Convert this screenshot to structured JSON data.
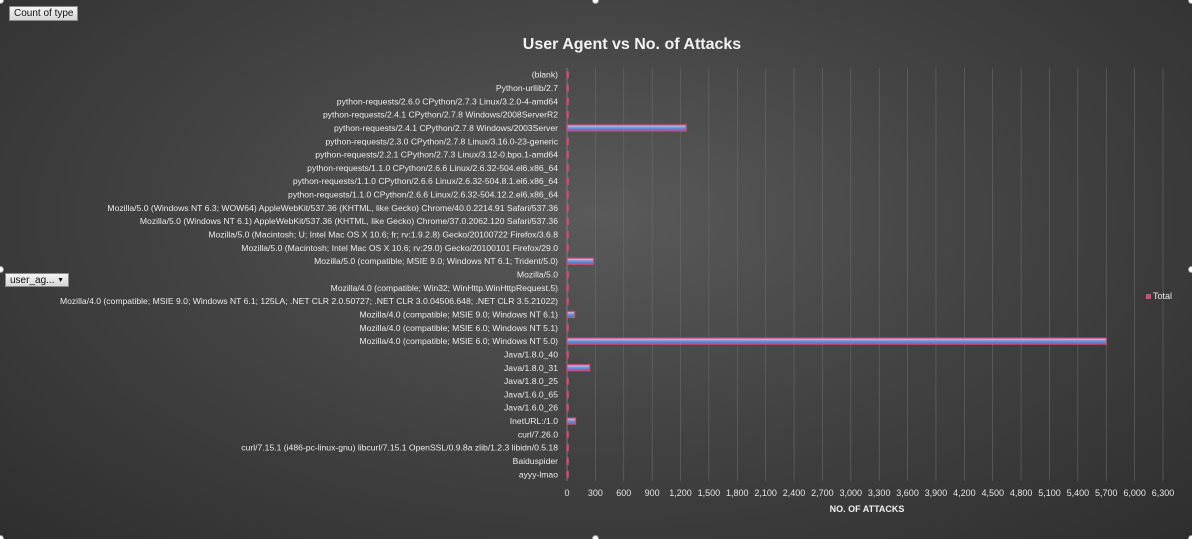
{
  "pivot": {
    "value_field": "Count of type",
    "row_field": "user_ag..."
  },
  "chart_data": {
    "type": "bar",
    "orientation": "horizontal",
    "title": "User Agent vs No. of Attacks",
    "xlabel": "NO. OF ATTACKS",
    "ylabel": "",
    "xlim": [
      0,
      6300
    ],
    "xticks": [
      0,
      300,
      600,
      900,
      1200,
      1500,
      1800,
      2100,
      2400,
      2700,
      3000,
      3300,
      3600,
      3900,
      4200,
      4500,
      4800,
      5100,
      5400,
      5700,
      6000,
      6300
    ],
    "xtick_labels": [
      "0",
      "300",
      "600",
      "900",
      "1,200",
      "1,500",
      "1,800",
      "2,100",
      "2,400",
      "2,700",
      "3,000",
      "3,300",
      "3,600",
      "3,900",
      "4,200",
      "4,500",
      "4,800",
      "5,100",
      "5,400",
      "5,700",
      "6,000",
      "6,300"
    ],
    "grid": "vertical",
    "legend_position": "right",
    "categories": [
      "(blank)",
      "Python-urllib/2.7",
      "python-requests/2.6.0 CPython/2.7.3 Linux/3.2.0-4-amd64",
      "python-requests/2.4.1 CPython/2.7.8 Windows/2008ServerR2",
      "python-requests/2.4.1 CPython/2.7.8 Windows/2003Server",
      "python-requests/2.3.0 CPython/2.7.8 Linux/3.16.0-23-generic",
      "python-requests/2.2.1 CPython/2.7.3 Linux/3.12-0.bpo.1-amd64",
      "python-requests/1.1.0 CPython/2.6.6 Linux/2.6.32-504.el6.x86_64",
      "python-requests/1.1.0 CPython/2.6.6 Linux/2.6.32-504.8.1.el6.x86_64",
      "python-requests/1.1.0 CPython/2.6.6 Linux/2.6.32-504.12.2.el6.x86_64",
      "Mozilla/5.0 (Windows NT 6.3; WOW64) AppleWebKit/537.36 (KHTML, like Gecko) Chrome/40.0.2214.91 Safari/537.36",
      "Mozilla/5.0 (Windows NT 6.1) AppleWebKit/537.36 (KHTML, like Gecko) Chrome/37.0.2062.120 Safari/537.36",
      "Mozilla/5.0 (Macintosh; U; Intel Mac OS X 10.6; fr; rv:1.9.2.8) Gecko/20100722 Firefox/3.6.8",
      "Mozilla/5.0 (Macintosh; Intel Mac OS X 10.6; rv:29.0) Gecko/20100101 Firefox/29.0",
      "Mozilla/5.0 (compatible; MSIE 9.0; Windows NT 6.1; Trident/5.0)",
      "Mozilla/5.0",
      "Mozilla/4.0 (compatible; Win32; WinHttp.WinHttpRequest.5)",
      "Mozilla/4.0 (compatible; MSIE 9.0; Windows NT 6.1; 125LA; .NET CLR 2.0.50727; .NET CLR 3.0.04506.648; .NET CLR 3.5.21022)",
      "Mozilla/4.0 (compatible; MSIE 9.0; Windows NT 6.1)",
      "Mozilla/4.0 (compatible; MSIE 6.0; Windows NT 5.1)",
      "Mozilla/4.0 (compatible; MSIE 6.0; Windows NT 5.0)",
      "Java/1.8.0_40",
      "Java/1.8.0_31",
      "Java/1.8.0_25",
      "Java/1.6.0_65",
      "Java/1.6.0_26",
      "InetURL:/1.0",
      "curl/7.26.0",
      "curl/7.15.1 (i486-pc-linux-gnu) libcurl/7.15.1 OpenSSL/0.9.8a zlib/1.2.3 libidn/0.5.18",
      "Baiduspider",
      "ayyy-lmao"
    ],
    "series": [
      {
        "name": "Total",
        "color": "#d84a78",
        "values": [
          3,
          1,
          1,
          1,
          1260,
          1,
          1,
          1,
          1,
          1,
          1,
          1,
          1,
          1,
          280,
          1,
          1,
          1,
          80,
          1,
          5700,
          1,
          240,
          1,
          1,
          1,
          90,
          1,
          1,
          1,
          1
        ]
      }
    ]
  }
}
